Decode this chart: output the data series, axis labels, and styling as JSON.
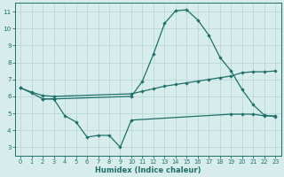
{
  "xlabel": "Humidex (Indice chaleur)",
  "background_color": "#d7edec",
  "grid_color": "#b8d8d5",
  "line_color": "#1e7068",
  "xlim": [
    -0.5,
    23.5
  ],
  "ylim": [
    2.5,
    11.5
  ],
  "yticks": [
    3,
    4,
    5,
    6,
    7,
    8,
    9,
    10,
    11
  ],
  "xticks": [
    0,
    1,
    2,
    3,
    4,
    5,
    6,
    7,
    8,
    9,
    10,
    11,
    12,
    13,
    14,
    15,
    16,
    17,
    18,
    19,
    20,
    21,
    22,
    23
  ],
  "series1_x": [
    0,
    1,
    2,
    3,
    10,
    11,
    12,
    13,
    14,
    15,
    16,
    17,
    18,
    19,
    20,
    21,
    22,
    23
  ],
  "series1_y": [
    6.5,
    6.2,
    5.85,
    5.85,
    6.0,
    6.9,
    8.5,
    10.3,
    11.05,
    11.1,
    10.5,
    9.6,
    8.3,
    7.5,
    6.4,
    5.5,
    4.9,
    4.8
  ],
  "series2_x": [
    0,
    1,
    2,
    3,
    10,
    11,
    12,
    13,
    14,
    15,
    16,
    17,
    18,
    19,
    20,
    21,
    22,
    23
  ],
  "series2_y": [
    6.5,
    6.25,
    6.05,
    6.0,
    6.15,
    6.3,
    6.45,
    6.6,
    6.7,
    6.8,
    6.9,
    7.0,
    7.1,
    7.2,
    7.4,
    7.45,
    7.45,
    7.5
  ],
  "series3_x": [
    2,
    3,
    4,
    5,
    6,
    7,
    8,
    9,
    10,
    19,
    20,
    21,
    22,
    23
  ],
  "series3_y": [
    5.85,
    5.85,
    4.85,
    4.5,
    3.6,
    3.7,
    3.7,
    3.0,
    4.6,
    4.95,
    4.95,
    4.95,
    4.85,
    4.85
  ]
}
